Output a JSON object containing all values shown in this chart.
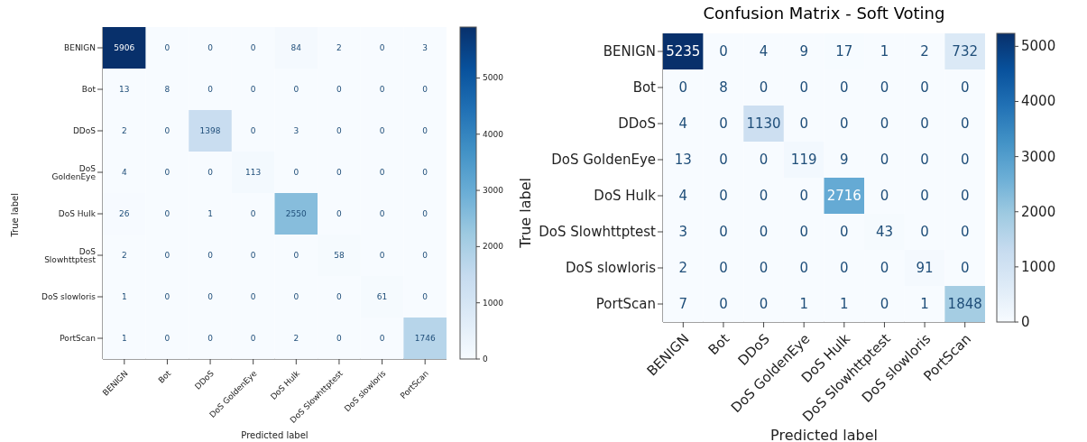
{
  "chart_data": [
    {
      "type": "heatmap",
      "xlabel": "Predicted label",
      "ylabel": "True label",
      "categories": [
        "BENIGN",
        "Bot",
        "DDoS",
        "DoS GoldenEye",
        "DoS Hulk",
        "DoS Slowhttptest",
        "DoS slowloris",
        "PortScan"
      ],
      "y_categories": [
        "BENIGN",
        "Bot",
        "DDoS",
        "DoS GoldenEye",
        "DoS Hulk",
        "DoS Slowhttptest",
        "DoS slowloris",
        "PortScan"
      ],
      "cells": [
        [
          5906,
          0,
          0,
          0,
          84,
          2,
          0,
          3
        ],
        [
          13,
          8,
          0,
          0,
          0,
          0,
          0,
          0
        ],
        [
          2,
          0,
          1398,
          0,
          3,
          0,
          0,
          0
        ],
        [
          4,
          0,
          0,
          113,
          0,
          0,
          0,
          0
        ],
        [
          26,
          0,
          1,
          0,
          2550,
          0,
          0,
          0
        ],
        [
          2,
          0,
          0,
          0,
          0,
          58,
          0,
          0
        ],
        [
          1,
          0,
          0,
          0,
          0,
          0,
          61,
          0
        ],
        [
          1,
          0,
          0,
          0,
          2,
          0,
          0,
          1746
        ]
      ],
      "clim": [
        0,
        5906
      ],
      "cticks": [
        0,
        1000,
        2000,
        3000,
        4000,
        5000
      ],
      "data_labels": true
    },
    {
      "type": "heatmap",
      "title": "Confusion Matrix - Soft Voting",
      "xlabel": "Predicted label",
      "ylabel": "True label",
      "categories": [
        "BENIGN",
        "Bot",
        "DDoS",
        "DoS GoldenEye",
        "DoS Hulk",
        "DoS Slowhttptest",
        "DoS slowloris",
        "PortScan"
      ],
      "y_categories": [
        "BENIGN",
        "Bot",
        "DDoS",
        "DoS GoldenEye",
        "DoS Hulk",
        "DoS Slowhttptest",
        "DoS slowloris",
        "PortScan"
      ],
      "cells": [
        [
          5235,
          0,
          4,
          9,
          17,
          1,
          2,
          732
        ],
        [
          0,
          8,
          0,
          0,
          0,
          0,
          0,
          0
        ],
        [
          4,
          0,
          1130,
          0,
          0,
          0,
          0,
          0
        ],
        [
          13,
          0,
          0,
          119,
          9,
          0,
          0,
          0
        ],
        [
          4,
          0,
          0,
          0,
          2716,
          0,
          0,
          0
        ],
        [
          3,
          0,
          0,
          0,
          0,
          43,
          0,
          0
        ],
        [
          2,
          0,
          0,
          0,
          0,
          0,
          91,
          0
        ],
        [
          7,
          0,
          0,
          1,
          1,
          0,
          1,
          1848
        ]
      ],
      "clim": [
        0,
        5235
      ],
      "cticks": [
        0,
        1000,
        2000,
        3000,
        4000,
        5000
      ],
      "data_labels": true
    }
  ]
}
